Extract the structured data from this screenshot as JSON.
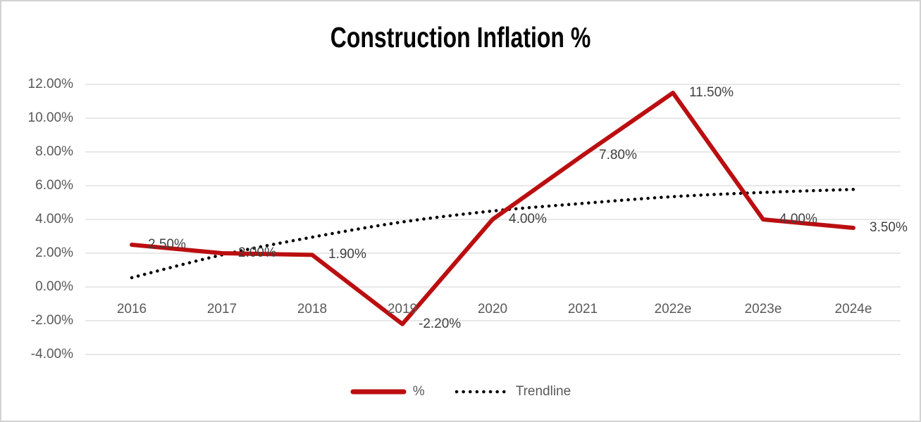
{
  "chart_data": {
    "type": "line",
    "title": "Construction Inflation %",
    "categories": [
      "2016",
      "2017",
      "2018",
      "2019",
      "2020",
      "2021",
      "2022e",
      "2023e",
      "2024e"
    ],
    "series": [
      {
        "name": "%",
        "values": [
          2.5,
          2.0,
          1.9,
          -2.2,
          4.0,
          7.8,
          11.5,
          4.0,
          3.5
        ],
        "labels": [
          "2.50%",
          "2.00%",
          "1.90%",
          "-2.20%",
          "4.00%",
          "7.80%",
          "11.50%",
          "4.00%",
          "3.50%"
        ],
        "color": "#BB0E10",
        "style": "solid"
      },
      {
        "name": "Trendline",
        "values": [
          0.55,
          1.9,
          2.95,
          3.85,
          4.5,
          4.95,
          5.35,
          5.6,
          5.78
        ],
        "color": "#000000",
        "style": "dotted"
      }
    ],
    "y_axis": {
      "tick_labels": [
        "12.00%",
        "10.00%",
        "8.00%",
        "6.00%",
        "4.00%",
        "2.00%",
        "0.00%",
        "-2.00%",
        "-4.00%"
      ],
      "tick_values": [
        12,
        10,
        8,
        6,
        4,
        2,
        0,
        -2,
        -4
      ],
      "min": -4,
      "max": 12
    },
    "xlabel": "",
    "ylabel": "",
    "grid": true,
    "legend_position": "bottom",
    "colors": {
      "series_percent": "#BB0E10",
      "trendline": "#000000",
      "gridline": "#D9D9D9",
      "axis_text": "#595959",
      "data_label_text": "#404040",
      "border": "#D2D2D2"
    }
  }
}
